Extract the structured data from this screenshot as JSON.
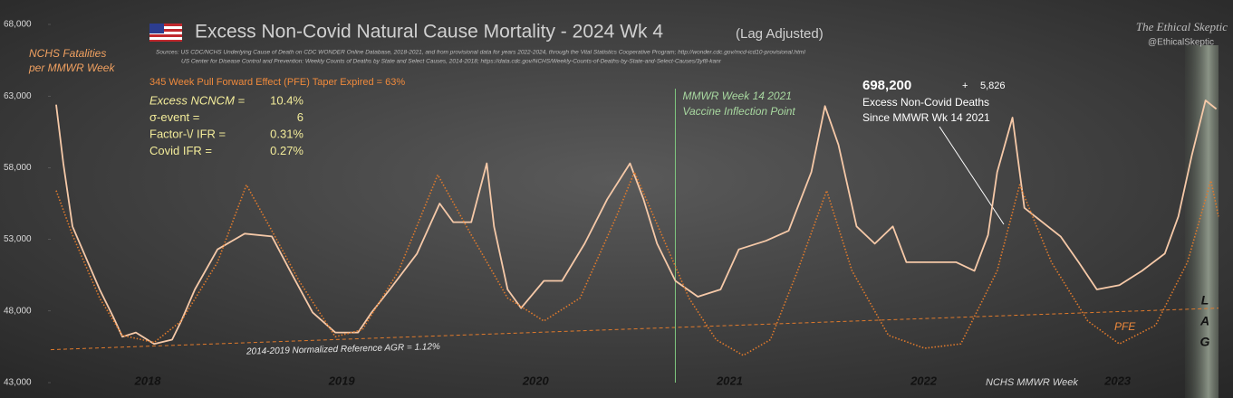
{
  "chart_data": {
    "type": "line",
    "title": "Excess Non-Covid Natural Cause Mortality - 2024 Wk 4",
    "title_suffix": "(Lag Adjusted)",
    "sources": [
      "Sources:   US CDC/NCHS Underlying Cause of Death on CDC WONDER Online Database, 2018-2021, and from provisional data for years 2022-2024, through the Vital Statistics Cooperative Program; http://wonder.cdc.gov/mcd-icd10-provisional.html",
      "US Center for Disease Control and Prevention: Weekly  Counts of Deaths by State and Select Causes, 2014-2018; https://data.cdc.gov/NCHS/Weekly-Counts-of-Deaths-by-State-and-Select-Causes/3yf8-kanr"
    ],
    "brand": "The Ethical Skeptic",
    "handle": "@EthicalSkeptic",
    "y_label": [
      "NCHS Fatalities",
      "per MMWR Week"
    ],
    "x_label": "NCHS MMWR Week",
    "pfe_note": "345 Week Pull Forward Effect (PFE) Taper Expired = 63%",
    "stats": [
      [
        "Excess NCNCM =",
        "10.4%"
      ],
      [
        "σ-event =",
        "6"
      ],
      [
        "Factor-\\/ IFR =",
        "0.31%"
      ],
      [
        "Covid IFR =",
        "0.27%"
      ]
    ],
    "excess": {
      "total": "698,200",
      "plus": "+",
      "recent": "5,826",
      "lines": [
        "Excess  Non-Covid Deaths",
        "Since MMWR Wk 14 2021"
      ]
    },
    "inflection": {
      "x": 2021.22,
      "lines": [
        "MMWR Week 14 2021",
        "Vaccine Inflection Point"
      ]
    },
    "reference_line": {
      "label": "2014-2019 Normalized Reference AGR = 1.12%",
      "x": [
        2018,
        2024.02
      ],
      "values": [
        45300,
        48200
      ]
    },
    "pfe_label": "PFE",
    "lag_label": [
      "L",
      "A",
      "G"
    ],
    "xlim": [
      2018,
      2024.02
    ],
    "xticks": [
      {
        "value": 2018.5,
        "label": "2018"
      },
      {
        "value": 2019.5,
        "label": "2019"
      },
      {
        "value": 2020.5,
        "label": "2020"
      },
      {
        "value": 2021.5,
        "label": "2021"
      },
      {
        "value": 2022.5,
        "label": "2022"
      },
      {
        "value": 2023.5,
        "label": "2023"
      }
    ],
    "ylim": [
      43000,
      68000
    ],
    "yticks": [
      {
        "value": 43000,
        "label": "43,000"
      },
      {
        "value": 48000,
        "label": "48,000"
      },
      {
        "value": 53000,
        "label": "53,000"
      },
      {
        "value": 58000,
        "label": "58,000"
      },
      {
        "value": 63000,
        "label": "63,000"
      },
      {
        "value": 68000,
        "label": "68,000"
      }
    ],
    "grid": false,
    "series": [
      {
        "color": "#f6c9a8",
        "style": "solid",
        "x": [
          2018.028,
          2018.065,
          2018.112,
          2018.182,
          2018.252,
          2018.322,
          2018.369,
          2018.439,
          2018.533,
          2018.626,
          2018.673,
          2018.743,
          2018.86,
          2019.0,
          2019.14,
          2019.234,
          2019.35,
          2019.467,
          2019.584,
          2019.654,
          2019.748,
          2019.888,
          2020.005,
          2020.075,
          2020.168,
          2020.248,
          2020.285,
          2020.355,
          2020.425,
          2020.542,
          2020.636,
          2020.752,
          2020.869,
          2020.986,
          2021.056,
          2021.126,
          2021.22,
          2021.336,
          2021.453,
          2021.547,
          2021.687,
          2021.804,
          2021.921,
          2021.991,
          2022.061,
          2022.154,
          2022.248,
          2022.341,
          2022.411,
          2022.551,
          2022.668,
          2022.762,
          2022.832,
          2022.879,
          2022.958,
          2023.019,
          2023.112,
          2023.206,
          2023.299,
          2023.393,
          2023.509,
          2023.626,
          2023.743,
          2023.813,
          2023.883,
          2023.953,
          2024.009
        ],
        "values": [
          62400,
          58300,
          53900,
          51700,
          49500,
          47600,
          46200,
          46500,
          45700,
          46000,
          47300,
          49500,
          52300,
          53400,
          53200,
          50800,
          47900,
          46500,
          46500,
          47900,
          49500,
          52000,
          55500,
          54200,
          54200,
          58300,
          53900,
          49500,
          48200,
          50100,
          50100,
          52700,
          55800,
          58300,
          55800,
          52700,
          50100,
          49000,
          49500,
          52300,
          52900,
          53600,
          57700,
          62300,
          59600,
          53900,
          52700,
          53900,
          51400,
          51400,
          51400,
          50800,
          53300,
          57700,
          61500,
          55200,
          54200,
          53200,
          51400,
          49500,
          49800,
          50800,
          52000,
          54600,
          58900,
          62700,
          62100
        ]
      },
      {
        "color": "#e07a2c",
        "style": "dotted",
        "x": [
          2018.028,
          2018.112,
          2018.252,
          2018.369,
          2018.533,
          2018.673,
          2018.86,
          2019.009,
          2019.14,
          2019.28,
          2019.467,
          2019.607,
          2019.794,
          2019.995,
          2020.168,
          2020.355,
          2020.542,
          2020.729,
          2020.916,
          2021.009,
          2021.15,
          2021.29,
          2021.43,
          2021.57,
          2021.71,
          2021.85,
          2022.0,
          2022.131,
          2022.318,
          2022.505,
          2022.692,
          2022.879,
          2022.995,
          2023.159,
          2023.346,
          2023.509,
          2023.696,
          2023.86,
          2023.981,
          2024.02
        ],
        "values": [
          56400,
          53300,
          48900,
          46300,
          45800,
          47300,
          51400,
          56800,
          53600,
          50100,
          46200,
          46700,
          50800,
          57500,
          53300,
          48900,
          47300,
          48900,
          54600,
          57700,
          53300,
          48900,
          46000,
          44900,
          46000,
          50800,
          56400,
          50800,
          46300,
          45400,
          45700,
          50800,
          56800,
          51400,
          47300,
          45700,
          47000,
          51400,
          57100,
          54600
        ]
      }
    ]
  }
}
